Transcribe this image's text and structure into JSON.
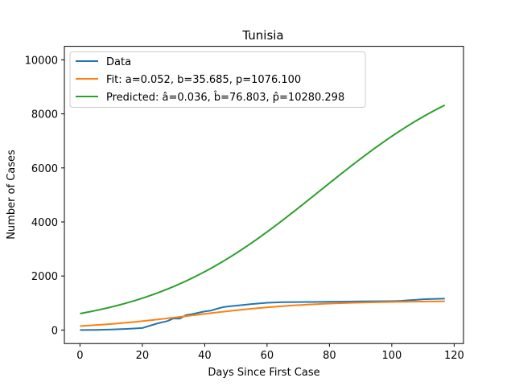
{
  "chart_data": {
    "type": "line",
    "title": "Tunisia",
    "xlabel": "Days Since First Case",
    "ylabel": "Number of Cases",
    "xlim": [
      -5,
      123
    ],
    "ylim": [
      -500,
      10500
    ],
    "xticks": [
      0,
      20,
      40,
      60,
      80,
      100,
      120
    ],
    "yticks": [
      0,
      2000,
      4000,
      6000,
      8000,
      10000
    ],
    "grid": false,
    "legend_position": "top-left",
    "series": [
      {
        "name": "Data",
        "color": "#1f77b4",
        "kind": "points",
        "x": [
          0,
          5,
          10,
          15,
          20,
          25,
          28,
          30,
          32,
          34,
          36,
          38,
          40,
          42,
          44,
          46,
          48,
          50,
          55,
          60,
          65,
          70,
          75,
          80,
          85,
          90,
          95,
          100,
          103,
          105,
          108,
          110,
          113,
          117
        ],
        "y": [
          1,
          5,
          20,
          40,
          75,
          250,
          330,
          430,
          420,
          550,
          590,
          640,
          690,
          720,
          790,
          850,
          880,
          900,
          960,
          1010,
          1030,
          1035,
          1040,
          1045,
          1050,
          1060,
          1065,
          1070,
          1080,
          1100,
          1120,
          1140,
          1150,
          1160
        ]
      },
      {
        "name": "Fit: a=0.052, b=35.685, p=1076.100",
        "color": "#ff7f0e",
        "kind": "logistic",
        "a": 0.052,
        "b": 35.685,
        "p": 1076.1,
        "x_range": [
          0,
          117
        ]
      },
      {
        "name": "Predicted: â=0.036, b̂=76.803, p̂=10280.298",
        "color": "#2ca02c",
        "kind": "logistic",
        "a": 0.036,
        "b": 76.803,
        "p": 10280.298,
        "x_range": [
          0,
          117
        ]
      }
    ]
  }
}
